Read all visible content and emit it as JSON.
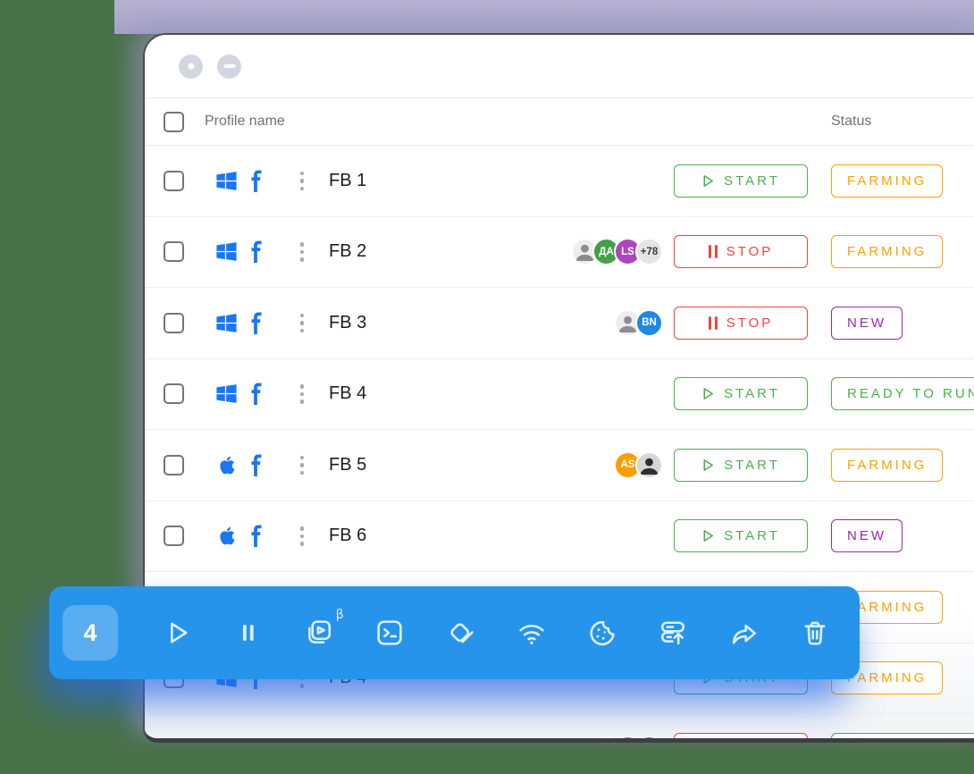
{
  "window": {
    "controls": [
      {
        "icon": "dot"
      },
      {
        "icon": "minus"
      }
    ]
  },
  "table": {
    "headers": {
      "profile_name": "Profile name",
      "status": "Status"
    },
    "rows": [
      {
        "name": "FB 1",
        "os": "windows",
        "avatars": [],
        "action": {
          "type": "start",
          "label": "START"
        },
        "status": {
          "label": "FARMING",
          "color": "orange"
        }
      },
      {
        "name": "FB 2",
        "os": "windows",
        "avatars": [
          {
            "type": "photo",
            "variant": "light"
          },
          {
            "type": "initials",
            "text": "ДА",
            "color": "green"
          },
          {
            "type": "initials",
            "text": "LS",
            "color": "purple"
          },
          {
            "type": "initials",
            "text": "+78",
            "color": "grey"
          }
        ],
        "action": {
          "type": "stop",
          "label": "STOP"
        },
        "status": {
          "label": "FARMING",
          "color": "orange"
        }
      },
      {
        "name": "FB 3",
        "os": "windows",
        "avatars": [
          {
            "type": "photo",
            "variant": "light"
          },
          {
            "type": "initials",
            "text": "BN",
            "color": "blue"
          }
        ],
        "action": {
          "type": "stop",
          "label": "STOP"
        },
        "status": {
          "label": "NEW",
          "color": "purple"
        }
      },
      {
        "name": "FB 4",
        "os": "windows",
        "avatars": [],
        "action": {
          "type": "start",
          "label": "START"
        },
        "status": {
          "label": "READY TO RUN",
          "color": "green"
        }
      },
      {
        "name": "FB 5",
        "os": "apple",
        "avatars": [
          {
            "type": "initials",
            "text": "AS",
            "color": "orange"
          },
          {
            "type": "photo",
            "variant": "dark"
          }
        ],
        "action": {
          "type": "start",
          "label": "START"
        },
        "status": {
          "label": "FARMING",
          "color": "orange"
        }
      },
      {
        "name": "FB 6",
        "os": "apple",
        "avatars": [],
        "action": {
          "type": "start",
          "label": "START"
        },
        "status": {
          "label": "NEW",
          "color": "purple"
        }
      },
      {
        "name": "",
        "os": null,
        "avatars": [],
        "action": null,
        "status": {
          "label": "FARMING",
          "color": "orange"
        }
      },
      {
        "name": "FB 4",
        "os": "windows",
        "avatars": [],
        "action": {
          "type": "start",
          "label": "START"
        },
        "status": {
          "label": "FARMING",
          "color": "orange"
        }
      },
      {
        "name": "",
        "os": "apple",
        "avatars": [
          {
            "type": "photo",
            "variant": "light"
          },
          {
            "type": "initials",
            "text": "",
            "color": "green"
          },
          {
            "type": "initials",
            "text": "",
            "color": "blue"
          }
        ],
        "action": {
          "type": "stop",
          "label": ""
        },
        "status": {
          "label": "",
          "color": "green"
        }
      }
    ]
  },
  "toolbar": {
    "count": "4",
    "icons": [
      {
        "name": "play-icon"
      },
      {
        "name": "pause-icon"
      },
      {
        "name": "automation-icon",
        "badge": "β"
      },
      {
        "name": "terminal-icon"
      },
      {
        "name": "tags-icon"
      },
      {
        "name": "wifi-icon"
      },
      {
        "name": "cookie-icon"
      },
      {
        "name": "stack-upload-icon"
      },
      {
        "name": "share-icon"
      },
      {
        "name": "trash-icon"
      }
    ]
  },
  "colors": {
    "green": "#4caf50",
    "red": "#f44336",
    "orange": "#FFA000",
    "purple": "#9c27b0",
    "blue": "#1e88e5",
    "grey": "#e4e4e6",
    "avatar_green": "#43a047",
    "avatar_purple": "#ab47bc",
    "avatar_orange": "#fb9e00",
    "toolbar_blue": "#2794ec",
    "brand_blue": "#1877f2"
  }
}
